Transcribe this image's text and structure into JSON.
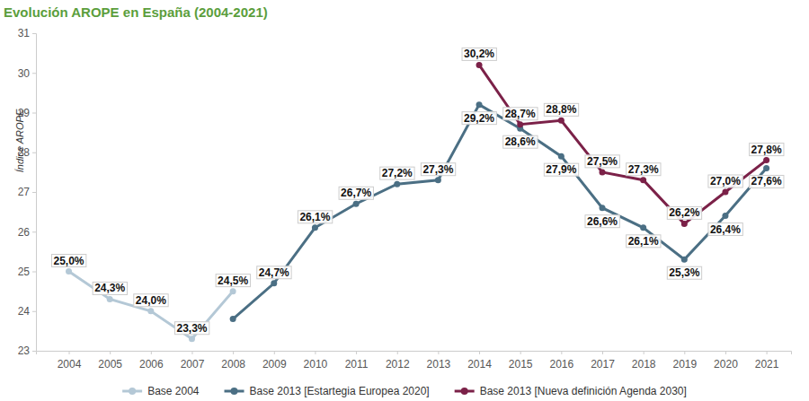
{
  "chart_data": {
    "type": "line",
    "title": "Evolución AROPE en España (2004-2021)",
    "y_label": "Índice AROPE",
    "x": [
      2004,
      2005,
      2006,
      2007,
      2008,
      2009,
      2010,
      2011,
      2012,
      2013,
      2014,
      2015,
      2016,
      2017,
      2018,
      2019,
      2020,
      2021
    ],
    "xlim": [
      2003.2,
      2021.6
    ],
    "xticks": [
      2004,
      2005,
      2006,
      2007,
      2008,
      2009,
      2010,
      2011,
      2012,
      2013,
      2014,
      2015,
      2016,
      2017,
      2018,
      2019,
      2020,
      2021
    ],
    "ylim": [
      23,
      31
    ],
    "yticks": [
      23,
      24,
      25,
      26,
      27,
      28,
      29,
      30,
      31
    ],
    "grid": false,
    "legend": "bottom",
    "data_labels": true,
    "series": [
      {
        "name": "Base 2004",
        "color": "#b4c8d6",
        "marker": "circle",
        "values": [
          25.0,
          24.3,
          24.0,
          23.3,
          24.5,
          null,
          null,
          null,
          null,
          null,
          null,
          null,
          null,
          null,
          null,
          null,
          null,
          null
        ],
        "value_labels": [
          "25,0%",
          "24,3%",
          "24,0%",
          "23,3%",
          "24,5%",
          null,
          null,
          null,
          null,
          null,
          null,
          null,
          null,
          null,
          null,
          null,
          null,
          null
        ]
      },
      {
        "name": "Base 2013 [Estartegia Europea 2020]",
        "color": "#4b6f84",
        "marker": "circle",
        "values": [
          null,
          null,
          null,
          null,
          23.8,
          24.7,
          26.1,
          26.7,
          27.2,
          27.3,
          29.2,
          28.6,
          27.9,
          26.6,
          26.1,
          25.3,
          26.4,
          27.6
        ],
        "value_labels": [
          null,
          null,
          null,
          null,
          null,
          "24,7%",
          "26,1%",
          "26,7%",
          "27,2%",
          "27,3%",
          "29,2%",
          "28,6%",
          "27,9%",
          "26,6%",
          "26,1%",
          "25,3%",
          "26,4%",
          "27,6%"
        ]
      },
      {
        "name": "Base 2013 [Nueva definición Agenda 2030]",
        "color": "#7b2148",
        "marker": "circle",
        "values": [
          null,
          null,
          null,
          null,
          null,
          null,
          null,
          null,
          null,
          null,
          30.2,
          28.7,
          28.8,
          27.5,
          27.3,
          26.2,
          27.0,
          27.8
        ],
        "value_labels": [
          null,
          null,
          null,
          null,
          null,
          null,
          null,
          null,
          null,
          null,
          "30,2%",
          "28,7%",
          "28,8%",
          "27,5%",
          "27,3%",
          "26,2%",
          "27,0%",
          "27,8%"
        ]
      }
    ]
  }
}
